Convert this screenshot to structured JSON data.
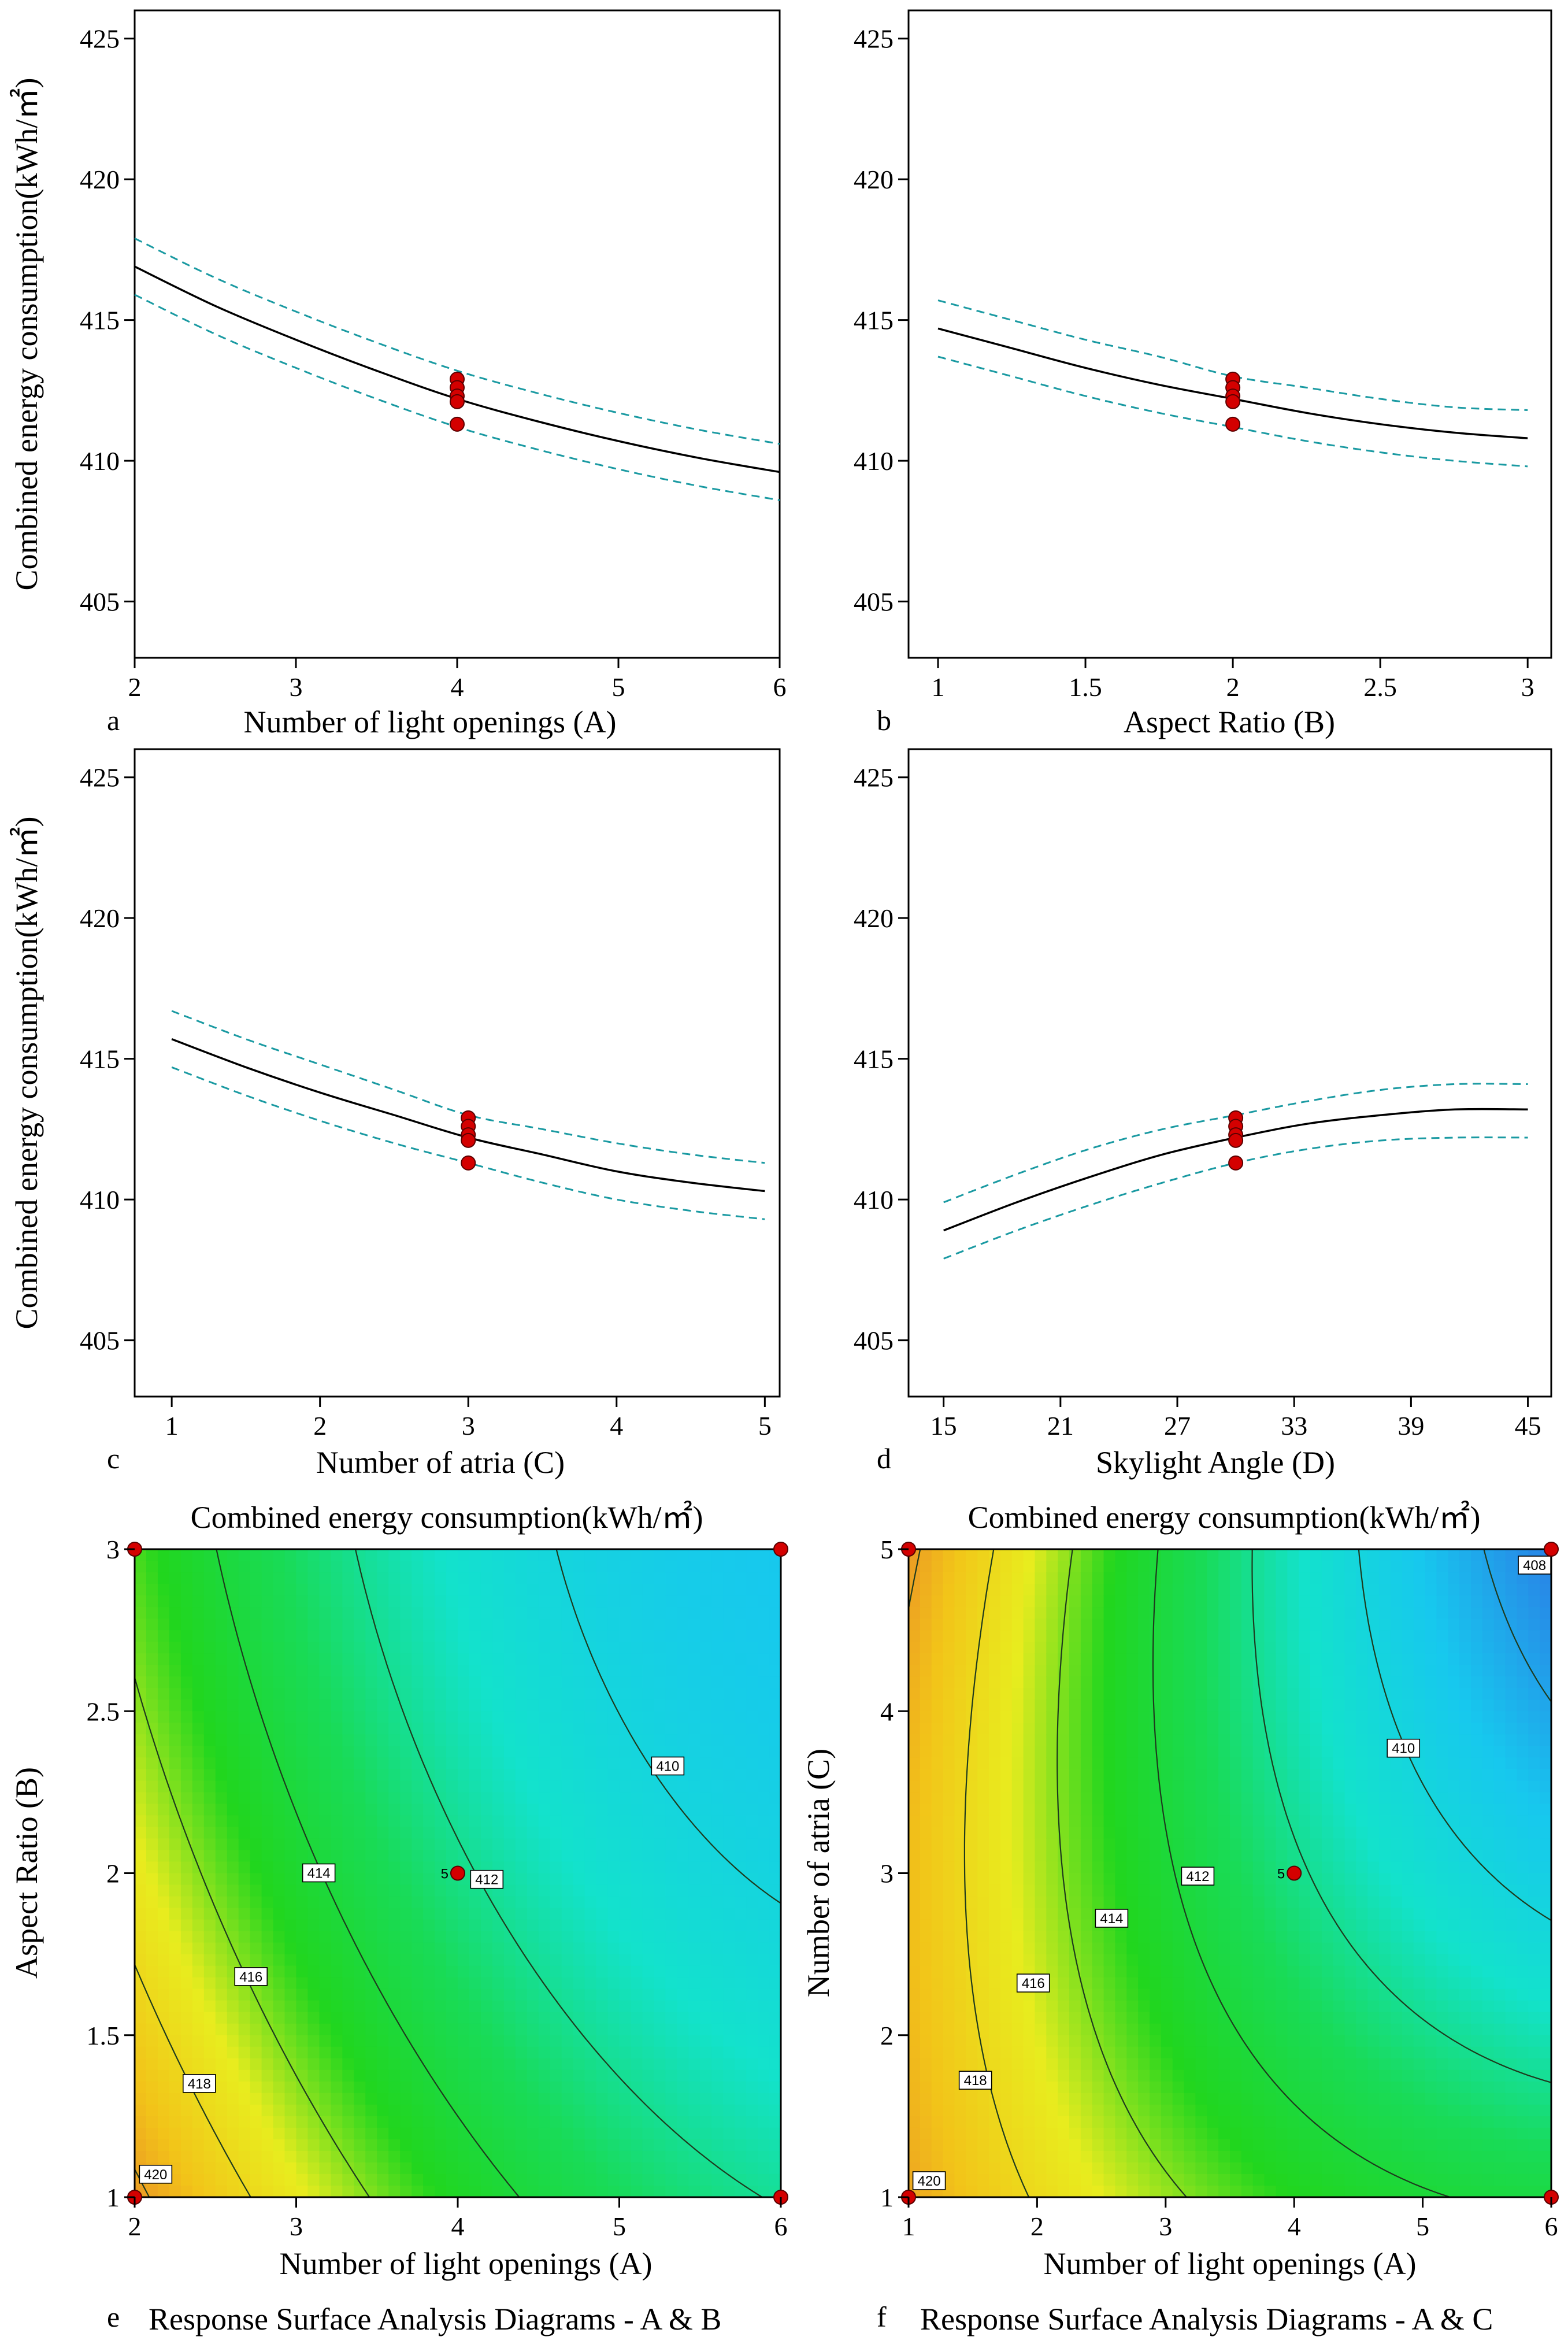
{
  "chart_data": [
    {
      "type": "line",
      "panel_label": "a",
      "xlabel": "Number of light openings (A)",
      "ylabel": "Combined energy consumption(kWh/㎡)",
      "xlim": [
        2,
        6
      ],
      "ylim": [
        403,
        426
      ],
      "x_ticks": [
        2,
        3,
        4,
        5,
        6
      ],
      "x_tick_labels": [
        "2",
        "3",
        "4",
        "5",
        "6"
      ],
      "y_ticks": [
        405,
        410,
        415,
        420,
        425
      ],
      "y_tick_labels": [
        "405",
        "410",
        "415",
        "420",
        "425"
      ],
      "series": [
        {
          "role": "prediction",
          "x": [
            2,
            2.5,
            3,
            3.5,
            4,
            4.5,
            5,
            5.5,
            6
          ],
          "y": [
            416.9,
            415.5,
            414.3,
            413.2,
            412.2,
            411.4,
            410.7,
            410.1,
            409.6
          ]
        },
        {
          "role": "upper-ci",
          "x": [
            2,
            2.5,
            3,
            3.5,
            4,
            4.5,
            5,
            5.5,
            6
          ],
          "y": [
            417.9,
            416.5,
            415.3,
            414.2,
            413.2,
            412.4,
            411.7,
            411.1,
            410.6
          ]
        },
        {
          "role": "lower-ci",
          "x": [
            2,
            2.5,
            3,
            3.5,
            4,
            4.5,
            5,
            5.5,
            6
          ],
          "y": [
            415.9,
            414.5,
            413.3,
            412.2,
            411.2,
            410.4,
            409.7,
            409.1,
            408.6
          ]
        }
      ],
      "design_points": {
        "x": [
          4,
          4,
          4,
          4,
          4
        ],
        "y": [
          412.9,
          412.6,
          412.3,
          412.1,
          411.3
        ]
      }
    },
    {
      "type": "line",
      "panel_label": "b",
      "xlabel": "Aspect Ratio (B)",
      "ylabel": "",
      "xlim": [
        0.9,
        3.08
      ],
      "ylim": [
        403,
        426
      ],
      "x_ticks": [
        1,
        1.5,
        2,
        2.5,
        3
      ],
      "x_tick_labels": [
        "1",
        "1.5",
        "2",
        "2.5",
        "3"
      ],
      "y_ticks": [
        405,
        410,
        415,
        420,
        425
      ],
      "y_tick_labels": [
        "405",
        "410",
        "415",
        "420",
        "425"
      ],
      "series": [
        {
          "role": "prediction",
          "x": [
            1,
            1.25,
            1.5,
            1.75,
            2,
            2.25,
            2.5,
            2.75,
            3
          ],
          "y": [
            414.7,
            414.0,
            413.3,
            412.7,
            412.2,
            411.7,
            411.3,
            411.0,
            410.8
          ]
        },
        {
          "role": "upper-ci",
          "x": [
            1,
            1.25,
            1.5,
            1.75,
            2,
            2.25,
            2.5,
            2.75,
            3
          ],
          "y": [
            415.7,
            415.0,
            414.3,
            413.7,
            413.0,
            412.6,
            412.2,
            411.9,
            411.8
          ]
        },
        {
          "role": "lower-ci",
          "x": [
            1,
            1.25,
            1.5,
            1.75,
            2,
            2.25,
            2.5,
            2.75,
            3
          ],
          "y": [
            413.7,
            413.0,
            412.3,
            411.7,
            411.2,
            410.7,
            410.3,
            410.0,
            409.8
          ]
        }
      ],
      "design_points": {
        "x": [
          2,
          2,
          2,
          2,
          2
        ],
        "y": [
          412.9,
          412.6,
          412.3,
          412.1,
          411.3
        ]
      }
    },
    {
      "type": "line",
      "panel_label": "c",
      "xlabel": "Number of atria (C)",
      "ylabel": "Combined energy consumption(kWh/㎡)",
      "xlim": [
        0.75,
        5.1
      ],
      "ylim": [
        403,
        426
      ],
      "x_ticks": [
        1,
        2,
        3,
        4,
        5
      ],
      "x_tick_labels": [
        "1",
        "2",
        "3",
        "4",
        "5"
      ],
      "y_ticks": [
        405,
        410,
        415,
        420,
        425
      ],
      "y_tick_labels": [
        "405",
        "410",
        "415",
        "420",
        "425"
      ],
      "series": [
        {
          "role": "prediction",
          "x": [
            1,
            1.5,
            2,
            2.5,
            3,
            3.5,
            4,
            4.5,
            5
          ],
          "y": [
            415.7,
            414.7,
            413.8,
            413.0,
            412.2,
            411.6,
            411.0,
            410.6,
            410.3
          ]
        },
        {
          "role": "upper-ci",
          "x": [
            1,
            1.5,
            2,
            2.5,
            3,
            3.5,
            4,
            4.5,
            5
          ],
          "y": [
            416.7,
            415.7,
            414.8,
            413.9,
            413.0,
            412.5,
            412.0,
            411.6,
            411.3
          ]
        },
        {
          "role": "lower-ci",
          "x": [
            1,
            1.5,
            2,
            2.5,
            3,
            3.5,
            4,
            4.5,
            5
          ],
          "y": [
            414.7,
            413.7,
            412.8,
            412.0,
            411.3,
            410.6,
            410.0,
            409.6,
            409.3
          ]
        }
      ],
      "design_points": {
        "x": [
          3,
          3,
          3,
          3,
          3
        ],
        "y": [
          412.9,
          412.6,
          412.3,
          412.1,
          411.3
        ]
      }
    },
    {
      "type": "line",
      "panel_label": "d",
      "xlabel": "Skylight Angle (D)",
      "ylabel": "",
      "xlim": [
        13.2,
        46.2
      ],
      "ylim": [
        403,
        426
      ],
      "x_ticks": [
        15,
        21,
        27,
        33,
        39,
        45
      ],
      "x_tick_labels": [
        "15",
        "21",
        "27",
        "33",
        "39",
        "45"
      ],
      "y_ticks": [
        405,
        410,
        415,
        420,
        425
      ],
      "y_tick_labels": [
        "405",
        "410",
        "415",
        "420",
        "425"
      ],
      "series": [
        {
          "role": "prediction",
          "x": [
            15,
            18.75,
            22.5,
            26.25,
            30,
            33.75,
            37.5,
            41.25,
            45
          ],
          "y": [
            408.9,
            409.9,
            410.8,
            411.6,
            412.2,
            412.7,
            413.0,
            413.2,
            413.2
          ]
        },
        {
          "role": "upper-ci",
          "x": [
            15,
            18.75,
            22.5,
            26.25,
            30,
            33.75,
            37.5,
            41.25,
            45
          ],
          "y": [
            409.9,
            410.9,
            411.8,
            412.5,
            413.0,
            413.5,
            413.9,
            414.1,
            414.1
          ]
        },
        {
          "role": "lower-ci",
          "x": [
            15,
            18.75,
            22.5,
            26.25,
            30,
            33.75,
            37.5,
            41.25,
            45
          ],
          "y": [
            407.9,
            408.9,
            409.8,
            410.6,
            411.3,
            411.8,
            412.1,
            412.2,
            412.2
          ]
        }
      ],
      "design_points": {
        "x": [
          30,
          30,
          30,
          30,
          30
        ],
        "y": [
          412.9,
          412.6,
          412.3,
          412.1,
          411.3
        ]
      }
    },
    {
      "type": "heatmap",
      "panel_label": "e",
      "title": "Combined energy consumption(kWh/㎡)",
      "xlabel": "Number of light openings (A)",
      "ylabel": "Aspect Ratio (B)",
      "caption": "Response Surface Analysis Diagrams - A & B",
      "xlim": [
        2,
        6
      ],
      "ylim": [
        1,
        3
      ],
      "x_ticks": [
        2,
        3,
        4,
        5,
        6
      ],
      "x_tick_labels": [
        "2",
        "3",
        "4",
        "5",
        "6"
      ],
      "y_ticks": [
        1,
        1.5,
        2,
        2.5,
        3
      ],
      "y_tick_labels": [
        "1",
        "1.5",
        "2",
        "2.5",
        "3"
      ],
      "color_range": [
        409,
        421
      ],
      "color_stops": [
        "#e8832a",
        "#f2c419",
        "#e8ec1e",
        "#21d61e",
        "#19db57",
        "#13e2cc",
        "#17c8ee"
      ],
      "contour_levels": [
        410,
        412,
        414,
        416,
        418,
        420
      ],
      "contour_labels": [
        {
          "text": "420",
          "x": 2.13,
          "y": 1.07
        },
        {
          "text": "418",
          "x": 2.4,
          "y": 1.35
        },
        {
          "text": "416",
          "x": 2.72,
          "y": 1.68
        },
        {
          "text": "414",
          "x": 3.14,
          "y": 2.0
        },
        {
          "text": "412",
          "x": 4.18,
          "y": 1.98
        },
        {
          "text": "410",
          "x": 5.3,
          "y": 2.33
        }
      ],
      "design_points": {
        "x": [
          2,
          6,
          2,
          6,
          4
        ],
        "y": [
          1,
          1,
          3,
          3,
          2
        ]
      },
      "center_count_label": "5"
    },
    {
      "type": "heatmap",
      "panel_label": "f",
      "title": "Combined energy consumption(kWh/㎡)",
      "xlabel": "Number of light openings (A)",
      "ylabel": "Number of atria (C)",
      "caption": "Response Surface Analysis Diagrams - A & C",
      "xlim": [
        1,
        6
      ],
      "ylim": [
        1,
        5
      ],
      "x_ticks": [
        1,
        2,
        3,
        4,
        5,
        6
      ],
      "x_tick_labels": [
        "1",
        "2",
        "3",
        "4",
        "5",
        "6"
      ],
      "y_ticks": [
        1,
        2,
        3,
        4,
        5
      ],
      "y_tick_labels": [
        "1",
        "2",
        "3",
        "4",
        "5"
      ],
      "color_range": [
        407,
        421
      ],
      "color_stops": [
        "#e8832a",
        "#f2c419",
        "#e8ec1e",
        "#21d61e",
        "#19db57",
        "#13e2cc",
        "#17c8ee",
        "#2a7fe6"
      ],
      "contour_levels": [
        408,
        410,
        412,
        414,
        416,
        418,
        420
      ],
      "contour_labels": [
        {
          "text": "420",
          "x": 1.16,
          "y": 1.1
        },
        {
          "text": "418",
          "x": 1.52,
          "y": 1.72
        },
        {
          "text": "416",
          "x": 1.97,
          "y": 2.32
        },
        {
          "text": "414",
          "x": 2.58,
          "y": 2.72
        },
        {
          "text": "412",
          "x": 3.25,
          "y": 2.98
        },
        {
          "text": "410",
          "x": 4.85,
          "y": 3.77
        },
        {
          "text": "408",
          "x": 5.87,
          "y": 4.9
        }
      ],
      "design_points": {
        "x": [
          1,
          6,
          1,
          6,
          4
        ],
        "y": [
          1,
          1,
          5,
          5,
          3
        ]
      },
      "center_count_label": "5"
    }
  ]
}
